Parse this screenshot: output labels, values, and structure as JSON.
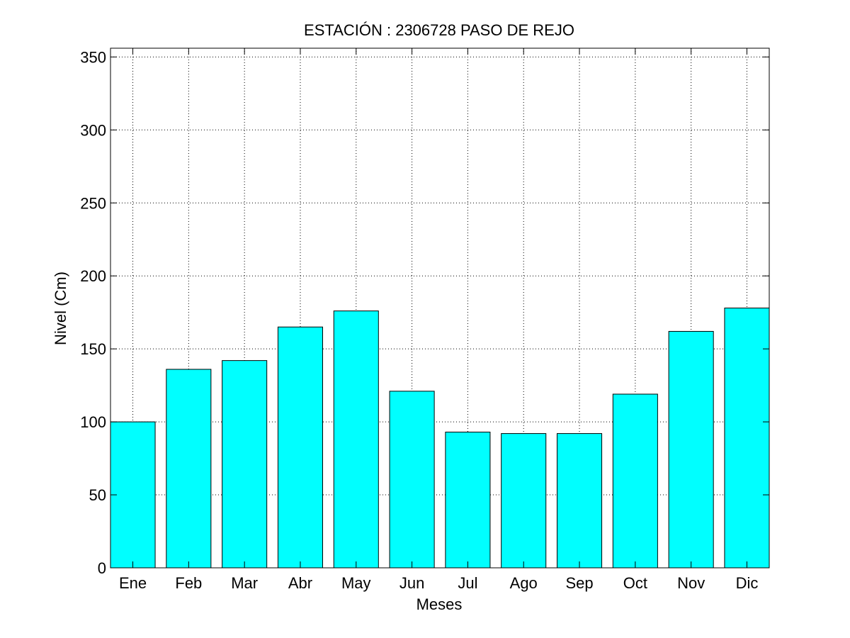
{
  "chart_data": {
    "type": "bar",
    "title": "ESTACIÓN :  2306728  PASO DE REJO",
    "xlabel": "Meses",
    "ylabel": "Nivel (Cm)",
    "categories": [
      "Ene",
      "Feb",
      "Mar",
      "Abr",
      "May",
      "Jun",
      "Jul",
      "Ago",
      "Sep",
      "Oct",
      "Nov",
      "Dic"
    ],
    "values": [
      100,
      136,
      142,
      165,
      176,
      121,
      93,
      92,
      92,
      119,
      162,
      178
    ],
    "ylim": [
      0,
      356
    ],
    "xlim": [
      0.6,
      12.4
    ],
    "yticks": [
      0,
      50,
      100,
      150,
      200,
      250,
      300,
      350
    ],
    "grid": true,
    "bar_color": "#00ffff",
    "bar_edge_color": "#000000"
  }
}
